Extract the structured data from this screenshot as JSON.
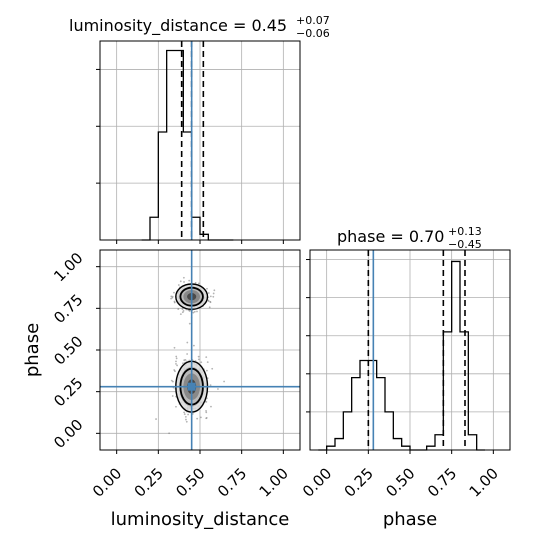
{
  "colors": {
    "truth": "#4682b4",
    "frame": "#000000",
    "grid": "#b0b0b0",
    "density": "#000000"
  },
  "chart_data": [
    {
      "type": "bar",
      "panel": "1d-marginal",
      "parameter": "luminosity_distance",
      "title": {
        "main": "luminosity_distance = 0.45",
        "upper": "+0.07",
        "lower": "−0.06"
      },
      "xlim": [
        -0.1,
        1.1
      ],
      "bin_edges": [
        0.15,
        0.2,
        0.25,
        0.3,
        0.35,
        0.4,
        0.45,
        0.5,
        0.55,
        0.6,
        0.65,
        0.7
      ],
      "values": [
        0,
        0.12,
        0.57,
        1.0,
        1.0,
        0.57,
        0.12,
        0.03,
        0.0,
        0.0,
        0.0
      ],
      "ylim": [
        0,
        1.05
      ],
      "quantile_lines": [
        0.39,
        0.45,
        0.52
      ],
      "truth": 0.45,
      "xticks": [
        "0.00",
        "0.25",
        "0.50",
        "0.75",
        "1.00"
      ],
      "grid": true
    },
    {
      "type": "bar",
      "panel": "1d-marginal",
      "parameter": "phase",
      "title": {
        "main": "phase = 0.70",
        "upper": "+0.13",
        "lower": "−0.45"
      },
      "xlim": [
        -0.1,
        1.1
      ],
      "bin_edges": [
        -0.05,
        0.0,
        0.05,
        0.1,
        0.15,
        0.2,
        0.25,
        0.3,
        0.35,
        0.4,
        0.45,
        0.5,
        0.55,
        0.6,
        0.65,
        0.7,
        0.75,
        0.8,
        0.85,
        0.9,
        0.95
      ],
      "values": [
        0,
        0.02,
        0.06,
        0.2,
        0.38,
        0.47,
        0.47,
        0.38,
        0.2,
        0.06,
        0.02,
        0,
        0,
        0.02,
        0.08,
        0.62,
        0.99,
        0.62,
        0.08,
        0.0
      ],
      "ylim": [
        0,
        1.05
      ],
      "quantile_lines": [
        0.25,
        0.7,
        0.83
      ],
      "truth": 0.28,
      "xticks": [
        "0.00",
        "0.25",
        "0.50",
        "0.75",
        "1.00"
      ],
      "xlabel": "phase",
      "grid": true
    },
    {
      "type": "scatter",
      "panel": "2d-density",
      "x_parameter": "luminosity_distance",
      "y_parameter": "phase",
      "xlabel": "luminosity_distance",
      "ylabel": "phase",
      "xlim": [
        -0.1,
        1.1
      ],
      "ylim": [
        -0.1,
        1.1
      ],
      "xticks": [
        "0.00",
        "0.25",
        "0.50",
        "0.75",
        "1.00"
      ],
      "yticks": [
        "0.00",
        "0.25",
        "0.50",
        "0.75",
        "1.00"
      ],
      "modes": [
        {
          "x": 0.45,
          "y": 0.28,
          "sx": 0.05,
          "sy": 0.08,
          "weight": 0.55
        },
        {
          "x": 0.45,
          "y": 0.82,
          "sx": 0.05,
          "sy": 0.04,
          "weight": 0.45
        }
      ],
      "truth": {
        "x": 0.45,
        "y": 0.28
      },
      "grid": true
    }
  ]
}
